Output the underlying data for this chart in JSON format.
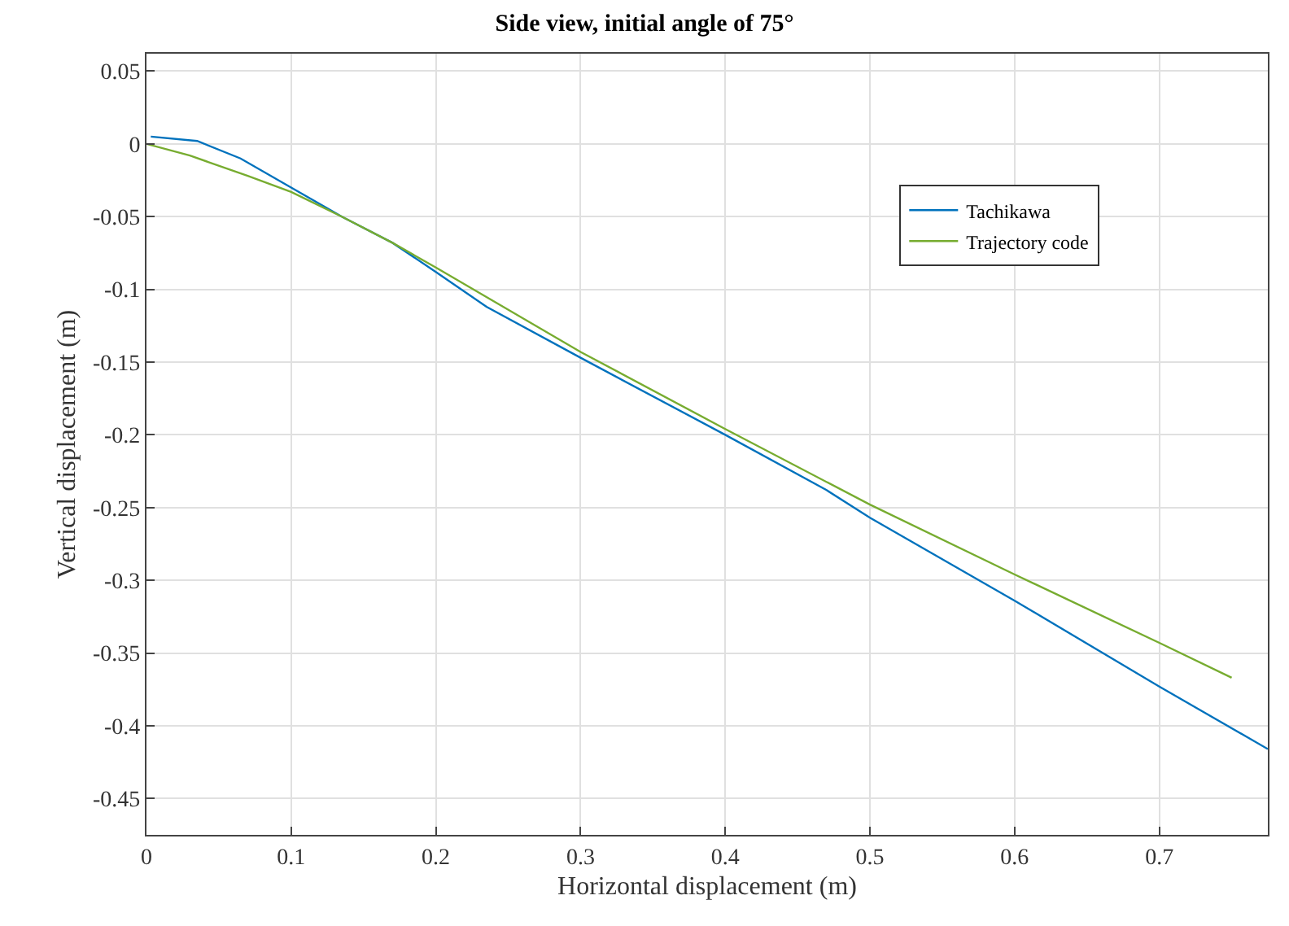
{
  "chart_data": {
    "type": "line",
    "title": "Side view, initial angle of 75°",
    "xlabel": "Horizontal displacement (m)",
    "ylabel": "Vertical displacement (m)",
    "xlim": [
      0,
      0.775
    ],
    "ylim": [
      -0.475,
      0.062
    ],
    "xticks": [
      0,
      0.1,
      0.2,
      0.3,
      0.4,
      0.5,
      0.6,
      0.7
    ],
    "yticks": [
      -0.45,
      -0.4,
      -0.35,
      -0.3,
      -0.25,
      -0.2,
      -0.15,
      -0.1,
      -0.05,
      0,
      0.05
    ],
    "grid": true,
    "legend": "right",
    "marker": "none",
    "line_style": "solid",
    "series": [
      {
        "name": "Tachikawa",
        "color": "#0072bd",
        "x": [
          0.003,
          0.035,
          0.065,
          0.1,
          0.135,
          0.17,
          0.2,
          0.235,
          0.3,
          0.4,
          0.47,
          0.5,
          0.6,
          0.7,
          0.775
        ],
        "values": [
          0.005,
          0.002,
          -0.01,
          -0.03,
          -0.05,
          -0.068,
          -0.088,
          -0.112,
          -0.147,
          -0.2,
          -0.238,
          -0.257,
          -0.314,
          -0.373,
          -0.416
        ]
      },
      {
        "name": "Trajectory code",
        "color": "#77ac30",
        "x": [
          0,
          0.03,
          0.07,
          0.1,
          0.135,
          0.17,
          0.2,
          0.3,
          0.4,
          0.5,
          0.6,
          0.7,
          0.75
        ],
        "values": [
          0,
          -0.008,
          -0.022,
          -0.033,
          -0.05,
          -0.068,
          -0.085,
          -0.143,
          -0.196,
          -0.248,
          -0.296,
          -0.343,
          -0.367
        ]
      }
    ]
  }
}
